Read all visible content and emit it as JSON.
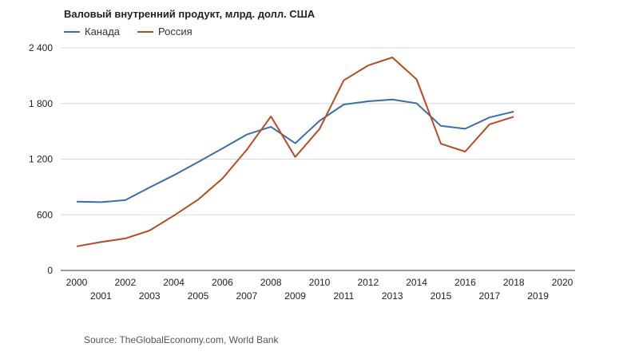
{
  "chart_data": {
    "type": "line",
    "title": "Валовый внутренний продукт, млрд. долл. США",
    "xlabel": "",
    "ylabel": "",
    "xlim": [
      2000,
      2020
    ],
    "ylim": [
      0,
      2400
    ],
    "yticks": [
      0,
      600,
      1200,
      1800,
      2400
    ],
    "ytick_labels": [
      "0",
      "600",
      "1 200",
      "1 800",
      "2 400"
    ],
    "xticks": [
      2000,
      2001,
      2002,
      2003,
      2004,
      2005,
      2006,
      2007,
      2008,
      2009,
      2010,
      2011,
      2012,
      2013,
      2014,
      2015,
      2016,
      2017,
      2018,
      2019,
      2020
    ],
    "grid": true,
    "legend_position": "top-left",
    "x": [
      2000,
      2001,
      2002,
      2003,
      2004,
      2005,
      2006,
      2007,
      2008,
      2009,
      2010,
      2011,
      2012,
      2013,
      2014,
      2015,
      2016,
      2017,
      2018
    ],
    "series": [
      {
        "name": "Канада",
        "color": "#3c6ea8",
        "values": [
          742,
          736,
          758,
          895,
          1026,
          1169,
          1315,
          1465,
          1549,
          1371,
          1613,
          1789,
          1824,
          1843,
          1802,
          1559,
          1528,
          1650,
          1713
        ]
      },
      {
        "name": "Россия",
        "color": "#b84a25",
        "values": [
          260,
          306,
          345,
          430,
          591,
          764,
          990,
          1300,
          1661,
          1223,
          1525,
          2050,
          2210,
          2297,
          2060,
          1366,
          1282,
          1575,
          1658
        ]
      }
    ]
  },
  "source_text": "Source: TheGlobalEconomy.com, World Bank"
}
